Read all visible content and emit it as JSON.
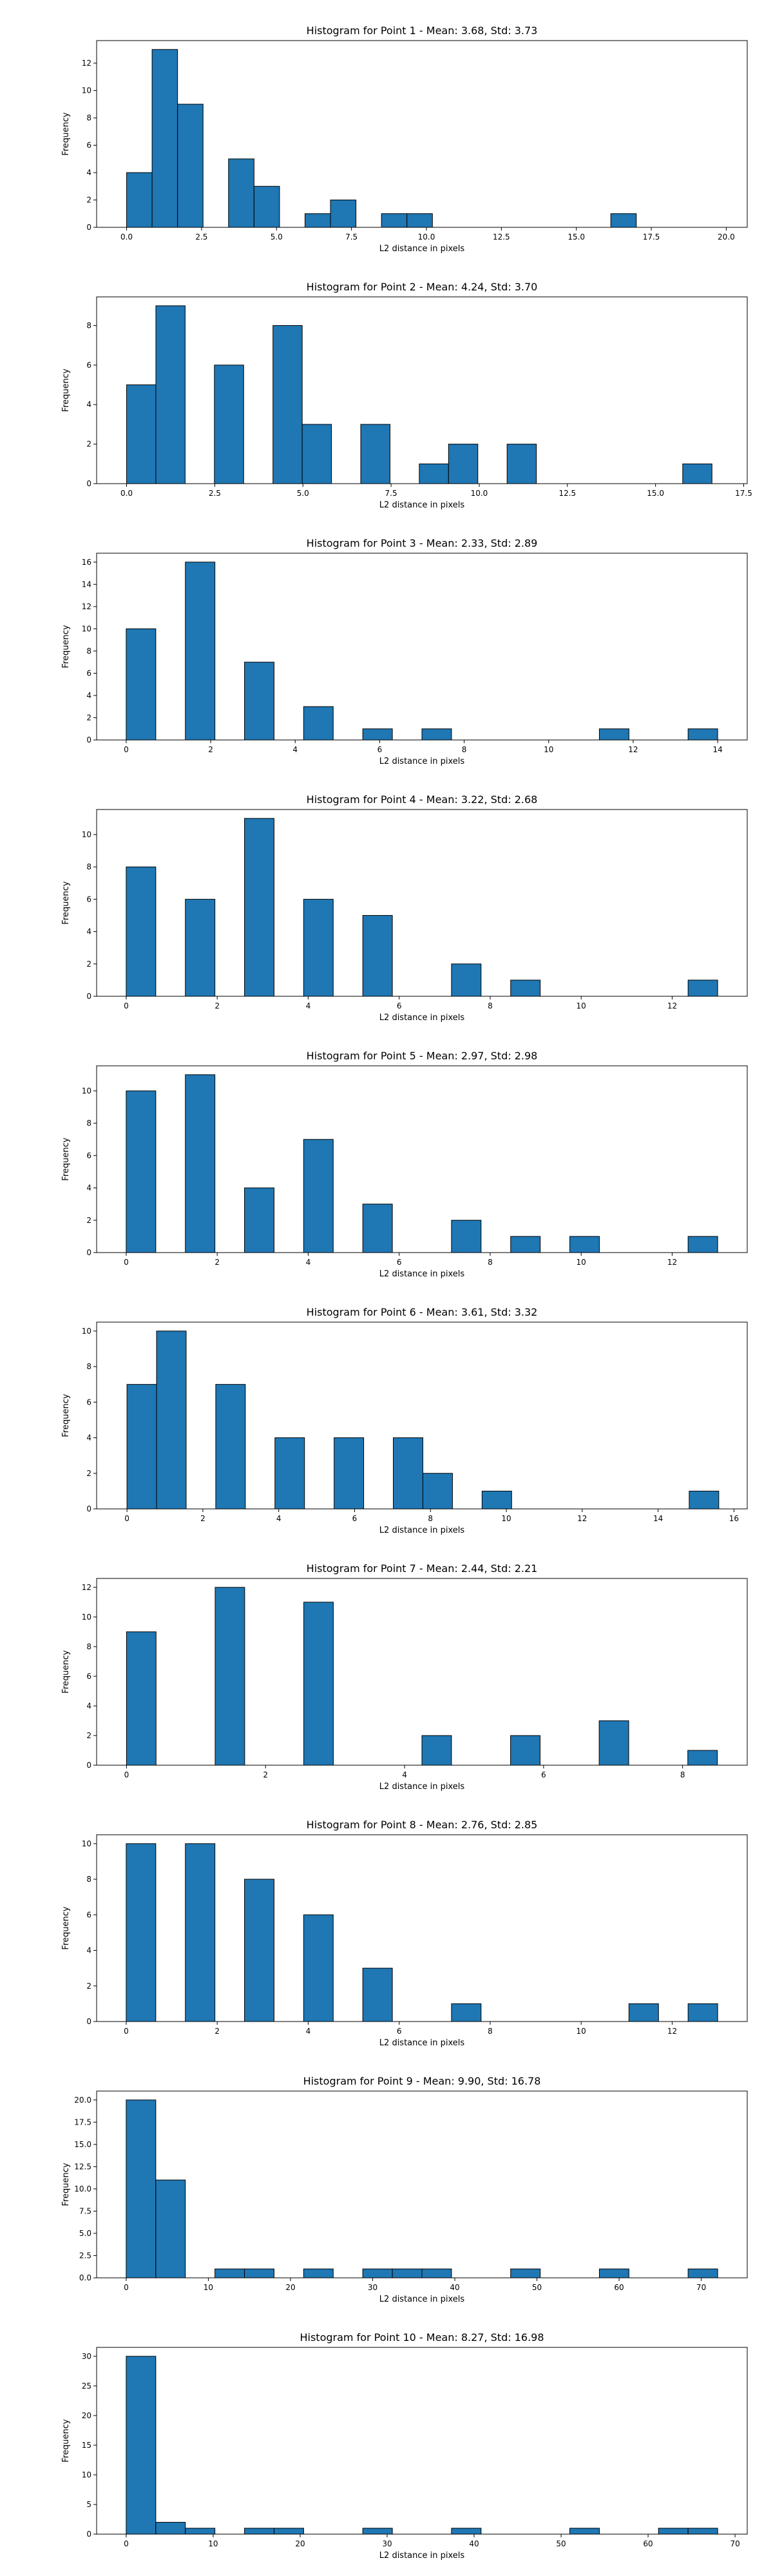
{
  "style": {
    "bar_color": "#1f77b4",
    "edge_color": "#000000",
    "axes_color": "#000000",
    "background": "#ffffff"
  },
  "chart_data": [
    {
      "type": "bar",
      "title": "Histogram for Point 1 - Mean: 3.68, Std: 3.73",
      "xlabel": "L2 distance in pixels",
      "ylabel": "Frequency",
      "xlim": [
        -1,
        20.7
      ],
      "ylim": [
        0,
        13.65
      ],
      "xticks": [
        0.0,
        2.5,
        5.0,
        7.5,
        10.0,
        12.5,
        15.0,
        17.5,
        20.0
      ],
      "xtick_labels": [
        "0.0",
        "2.5",
        "5.0",
        "7.5",
        "10.0",
        "12.5",
        "15.0",
        "17.5",
        "20.0"
      ],
      "yticks": [
        0,
        2,
        4,
        6,
        8,
        10,
        12
      ],
      "ytick_labels": [
        "0",
        "2",
        "4",
        "6",
        "8",
        "10",
        "12"
      ],
      "bins": [
        {
          "x0": 0.0,
          "x1": 0.85,
          "count": 4
        },
        {
          "x0": 0.85,
          "x1": 1.7,
          "count": 13
        },
        {
          "x0": 1.7,
          "x1": 2.55,
          "count": 9
        },
        {
          "x0": 3.4,
          "x1": 4.25,
          "count": 5
        },
        {
          "x0": 4.25,
          "x1": 5.1,
          "count": 3
        },
        {
          "x0": 5.95,
          "x1": 6.8,
          "count": 1
        },
        {
          "x0": 6.8,
          "x1": 7.65,
          "count": 2
        },
        {
          "x0": 8.5,
          "x1": 9.35,
          "count": 1
        },
        {
          "x0": 9.35,
          "x1": 10.2,
          "count": 1
        },
        {
          "x0": 16.15,
          "x1": 17.0,
          "count": 1
        }
      ]
    },
    {
      "type": "bar",
      "title": "Histogram for Point 2 - Mean: 4.24, Std: 3.70",
      "xlabel": "L2 distance in pixels",
      "ylabel": "Frequency",
      "xlim": [
        -0.85,
        17.6
      ],
      "ylim": [
        0,
        9.45
      ],
      "xticks": [
        0.0,
        2.5,
        5.0,
        7.5,
        10.0,
        12.5,
        15.0,
        17.5
      ],
      "xtick_labels": [
        "0.0",
        "2.5",
        "5.0",
        "7.5",
        "10.0",
        "12.5",
        "15.0",
        "17.5"
      ],
      "yticks": [
        0,
        2,
        4,
        6,
        8
      ],
      "ytick_labels": [
        "0",
        "2",
        "4",
        "6",
        "8"
      ],
      "bins": [
        {
          "x0": 0.0,
          "x1": 0.83,
          "count": 5
        },
        {
          "x0": 0.83,
          "x1": 1.66,
          "count": 9
        },
        {
          "x0": 2.49,
          "x1": 3.32,
          "count": 6
        },
        {
          "x0": 4.15,
          "x1": 4.98,
          "count": 8
        },
        {
          "x0": 4.98,
          "x1": 5.81,
          "count": 3
        },
        {
          "x0": 6.64,
          "x1": 7.47,
          "count": 3
        },
        {
          "x0": 8.3,
          "x1": 9.13,
          "count": 1
        },
        {
          "x0": 9.13,
          "x1": 9.96,
          "count": 2
        },
        {
          "x0": 10.79,
          "x1": 11.62,
          "count": 2
        },
        {
          "x0": 15.77,
          "x1": 16.6,
          "count": 1
        }
      ]
    },
    {
      "type": "bar",
      "title": "Histogram for Point 3 - Mean: 2.33, Std: 2.89",
      "xlabel": "L2 distance in pixels",
      "ylabel": "Frequency",
      "xlim": [
        -0.7,
        14.7
      ],
      "ylim": [
        0,
        16.8
      ],
      "xticks": [
        0,
        2,
        4,
        6,
        8,
        10,
        12,
        14
      ],
      "xtick_labels": [
        "0",
        "2",
        "4",
        "6",
        "8",
        "10",
        "12",
        "14"
      ],
      "yticks": [
        0,
        2,
        4,
        6,
        8,
        10,
        12,
        14,
        16
      ],
      "ytick_labels": [
        "0",
        "2",
        "4",
        "6",
        "8",
        "10",
        "12",
        "14",
        "16"
      ],
      "bins": [
        {
          "x0": 0.0,
          "x1": 0.7,
          "count": 10
        },
        {
          "x0": 1.4,
          "x1": 2.1,
          "count": 16
        },
        {
          "x0": 2.8,
          "x1": 3.5,
          "count": 7
        },
        {
          "x0": 4.2,
          "x1": 4.9,
          "count": 3
        },
        {
          "x0": 5.6,
          "x1": 6.3,
          "count": 1
        },
        {
          "x0": 7.0,
          "x1": 7.7,
          "count": 1
        },
        {
          "x0": 11.2,
          "x1": 11.9,
          "count": 1
        },
        {
          "x0": 13.3,
          "x1": 14.0,
          "count": 1
        }
      ]
    },
    {
      "type": "bar",
      "title": "Histogram for Point 4 - Mean: 3.22, Std: 2.68",
      "xlabel": "L2 distance in pixels",
      "ylabel": "Frequency",
      "xlim": [
        -0.65,
        13.65
      ],
      "ylim": [
        0,
        11.55
      ],
      "xticks": [
        0,
        2,
        4,
        6,
        8,
        10,
        12
      ],
      "xtick_labels": [
        "0",
        "2",
        "4",
        "6",
        "8",
        "10",
        "12"
      ],
      "yticks": [
        0,
        2,
        4,
        6,
        8,
        10
      ],
      "ytick_labels": [
        "0",
        "2",
        "4",
        "6",
        "8",
        "10"
      ],
      "bins": [
        {
          "x0": 0.0,
          "x1": 0.65,
          "count": 8
        },
        {
          "x0": 1.3,
          "x1": 1.95,
          "count": 6
        },
        {
          "x0": 2.6,
          "x1": 3.25,
          "count": 11
        },
        {
          "x0": 3.9,
          "x1": 4.55,
          "count": 6
        },
        {
          "x0": 5.2,
          "x1": 5.85,
          "count": 5
        },
        {
          "x0": 7.15,
          "x1": 7.8,
          "count": 2
        },
        {
          "x0": 8.45,
          "x1": 9.1,
          "count": 1
        },
        {
          "x0": 12.35,
          "x1": 13.0,
          "count": 1
        }
      ]
    },
    {
      "type": "bar",
      "title": "Histogram for Point 5 - Mean: 2.97, Std: 2.98",
      "xlabel": "L2 distance in pixels",
      "ylabel": "Frequency",
      "xlim": [
        -0.65,
        13.65
      ],
      "ylim": [
        0,
        11.55
      ],
      "xticks": [
        0,
        2,
        4,
        6,
        8,
        10,
        12
      ],
      "xtick_labels": [
        "0",
        "2",
        "4",
        "6",
        "8",
        "10",
        "12"
      ],
      "yticks": [
        0,
        2,
        4,
        6,
        8,
        10
      ],
      "ytick_labels": [
        "0",
        "2",
        "4",
        "6",
        "8",
        "10"
      ],
      "bins": [
        {
          "x0": 0.0,
          "x1": 0.65,
          "count": 10
        },
        {
          "x0": 1.3,
          "x1": 1.95,
          "count": 11
        },
        {
          "x0": 2.6,
          "x1": 3.25,
          "count": 4
        },
        {
          "x0": 3.9,
          "x1": 4.55,
          "count": 7
        },
        {
          "x0": 5.2,
          "x1": 5.85,
          "count": 3
        },
        {
          "x0": 7.15,
          "x1": 7.8,
          "count": 2
        },
        {
          "x0": 8.45,
          "x1": 9.1,
          "count": 1
        },
        {
          "x0": 9.75,
          "x1": 10.4,
          "count": 1
        },
        {
          "x0": 12.35,
          "x1": 13.0,
          "count": 1
        }
      ]
    },
    {
      "type": "bar",
      "title": "Histogram for Point 6 - Mean: 3.61, Std: 3.32",
      "xlabel": "L2 distance in pixels",
      "ylabel": "Frequency",
      "xlim": [
        -0.8,
        16.35
      ],
      "ylim": [
        0,
        10.5
      ],
      "xticks": [
        0,
        2,
        4,
        6,
        8,
        10,
        12,
        14,
        16
      ],
      "xtick_labels": [
        "0",
        "2",
        "4",
        "6",
        "8",
        "10",
        "12",
        "14",
        "16"
      ],
      "yticks": [
        0,
        2,
        4,
        6,
        8,
        10
      ],
      "ytick_labels": [
        "0",
        "2",
        "4",
        "6",
        "8",
        "10"
      ],
      "bins": [
        {
          "x0": 0.0,
          "x1": 0.78,
          "count": 7
        },
        {
          "x0": 0.78,
          "x1": 1.56,
          "count": 10
        },
        {
          "x0": 2.34,
          "x1": 3.12,
          "count": 7
        },
        {
          "x0": 3.9,
          "x1": 4.68,
          "count": 4
        },
        {
          "x0": 5.46,
          "x1": 6.24,
          "count": 4
        },
        {
          "x0": 7.02,
          "x1": 7.8,
          "count": 4
        },
        {
          "x0": 7.8,
          "x1": 8.58,
          "count": 2
        },
        {
          "x0": 9.36,
          "x1": 10.14,
          "count": 1
        },
        {
          "x0": 14.82,
          "x1": 15.6,
          "count": 1
        }
      ]
    },
    {
      "type": "bar",
      "title": "Histogram for Point 7 - Mean: 2.44, Std: 2.21",
      "xlabel": "L2 distance in pixels",
      "ylabel": "Frequency",
      "xlim": [
        -0.43,
        8.93
      ],
      "ylim": [
        0,
        12.6
      ],
      "xticks": [
        0,
        2,
        4,
        6,
        8
      ],
      "xtick_labels": [
        "0",
        "2",
        "4",
        "6",
        "8"
      ],
      "yticks": [
        0,
        2,
        4,
        6,
        8,
        10,
        12
      ],
      "ytick_labels": [
        "0",
        "2",
        "4",
        "6",
        "8",
        "10",
        "12"
      ],
      "bins": [
        {
          "x0": 0.0,
          "x1": 0.425,
          "count": 9
        },
        {
          "x0": 1.275,
          "x1": 1.7,
          "count": 12
        },
        {
          "x0": 2.55,
          "x1": 2.975,
          "count": 11
        },
        {
          "x0": 4.25,
          "x1": 4.675,
          "count": 2
        },
        {
          "x0": 5.525,
          "x1": 5.95,
          "count": 2
        },
        {
          "x0": 6.8,
          "x1": 7.225,
          "count": 3
        },
        {
          "x0": 8.075,
          "x1": 8.5,
          "count": 1
        }
      ]
    },
    {
      "type": "bar",
      "title": "Histogram for Point 8 - Mean: 2.76, Std: 2.85",
      "xlabel": "L2 distance in pixels",
      "ylabel": "Frequency",
      "xlim": [
        -0.65,
        13.65
      ],
      "ylim": [
        0,
        10.5
      ],
      "xticks": [
        0,
        2,
        4,
        6,
        8,
        10,
        12
      ],
      "xtick_labels": [
        "0",
        "2",
        "4",
        "6",
        "8",
        "10",
        "12"
      ],
      "yticks": [
        0,
        2,
        4,
        6,
        8,
        10
      ],
      "ytick_labels": [
        "0",
        "2",
        "4",
        "6",
        "8",
        "10"
      ],
      "bins": [
        {
          "x0": 0.0,
          "x1": 0.65,
          "count": 10
        },
        {
          "x0": 1.3,
          "x1": 1.95,
          "count": 10
        },
        {
          "x0": 2.6,
          "x1": 3.25,
          "count": 8
        },
        {
          "x0": 3.9,
          "x1": 4.55,
          "count": 6
        },
        {
          "x0": 5.2,
          "x1": 5.85,
          "count": 3
        },
        {
          "x0": 7.15,
          "x1": 7.8,
          "count": 1
        },
        {
          "x0": 11.05,
          "x1": 11.7,
          "count": 1
        },
        {
          "x0": 12.35,
          "x1": 13.0,
          "count": 1
        }
      ]
    },
    {
      "type": "bar",
      "title": "Histogram for Point 9 - Mean: 9.90, Std: 16.78",
      "xlabel": "L2 distance in pixels",
      "ylabel": "Frequency",
      "xlim": [
        -3.6,
        75.6
      ],
      "ylim": [
        0,
        21
      ],
      "xticks": [
        0,
        10,
        20,
        30,
        40,
        50,
        60,
        70
      ],
      "xtick_labels": [
        "0",
        "10",
        "20",
        "30",
        "40",
        "50",
        "60",
        "70"
      ],
      "yticks": [
        0.0,
        2.5,
        5.0,
        7.5,
        10.0,
        12.5,
        15.0,
        17.5,
        20.0
      ],
      "ytick_labels": [
        "0.0",
        "2.5",
        "5.0",
        "7.5",
        "10.0",
        "12.5",
        "15.0",
        "17.5",
        "20.0"
      ],
      "bins": [
        {
          "x0": 0.0,
          "x1": 3.6,
          "count": 20
        },
        {
          "x0": 3.6,
          "x1": 7.2,
          "count": 11
        },
        {
          "x0": 10.8,
          "x1": 14.4,
          "count": 1
        },
        {
          "x0": 14.4,
          "x1": 18.0,
          "count": 1
        },
        {
          "x0": 21.6,
          "x1": 25.2,
          "count": 1
        },
        {
          "x0": 28.8,
          "x1": 32.4,
          "count": 1
        },
        {
          "x0": 32.4,
          "x1": 36.0,
          "count": 1
        },
        {
          "x0": 36.0,
          "x1": 39.6,
          "count": 1
        },
        {
          "x0": 46.8,
          "x1": 50.4,
          "count": 1
        },
        {
          "x0": 57.6,
          "x1": 61.2,
          "count": 1
        },
        {
          "x0": 68.4,
          "x1": 72.0,
          "count": 1
        }
      ]
    },
    {
      "type": "bar",
      "title": "Histogram for Point 10 - Mean: 8.27, Std: 16.98",
      "xlabel": "L2 distance in pixels",
      "ylabel": "Frequency",
      "xlim": [
        -3.4,
        71.4
      ],
      "ylim": [
        0,
        31.5
      ],
      "xticks": [
        0,
        10,
        20,
        30,
        40,
        50,
        60,
        70
      ],
      "xtick_labels": [
        "0",
        "10",
        "20",
        "30",
        "40",
        "50",
        "60",
        "70"
      ],
      "yticks": [
        0,
        5,
        10,
        15,
        20,
        25,
        30
      ],
      "ytick_labels": [
        "0",
        "5",
        "10",
        "15",
        "20",
        "25",
        "30"
      ],
      "bins": [
        {
          "x0": 0.0,
          "x1": 3.4,
          "count": 30
        },
        {
          "x0": 3.4,
          "x1": 6.8,
          "count": 2
        },
        {
          "x0": 6.8,
          "x1": 10.2,
          "count": 1
        },
        {
          "x0": 13.6,
          "x1": 17.0,
          "count": 1
        },
        {
          "x0": 17.0,
          "x1": 20.4,
          "count": 1
        },
        {
          "x0": 27.2,
          "x1": 30.6,
          "count": 1
        },
        {
          "x0": 37.4,
          "x1": 40.8,
          "count": 1
        },
        {
          "x0": 51.0,
          "x1": 54.4,
          "count": 1
        },
        {
          "x0": 61.2,
          "x1": 64.6,
          "count": 1
        },
        {
          "x0": 64.6,
          "x1": 68.0,
          "count": 1
        }
      ]
    }
  ]
}
